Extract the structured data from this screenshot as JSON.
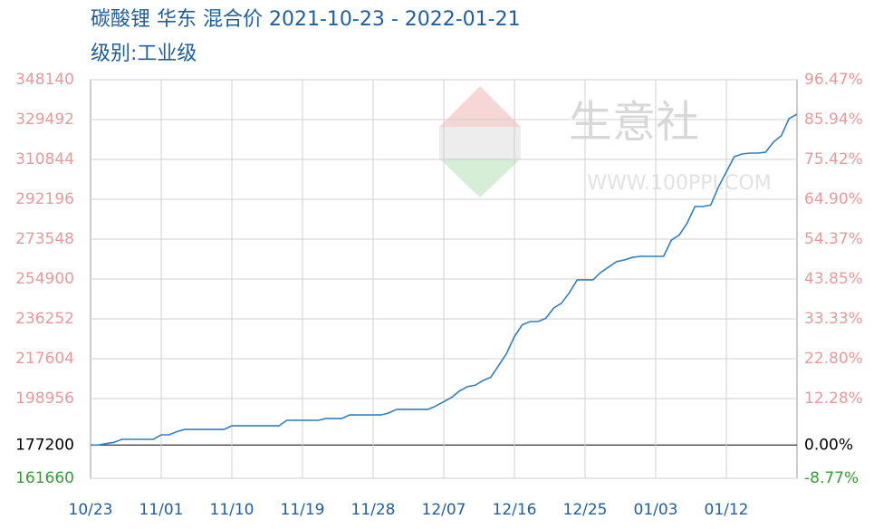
{
  "chart_data": {
    "type": "line",
    "title": "碳酸锂 华东 混合价 2021-10-23 - 2022-01-21",
    "subtitle": "级别:工业级",
    "watermark": "生意社",
    "watermark_url": "WWW.100PPI.COM",
    "categories": [
      "10/23",
      null,
      null,
      null,
      null,
      null,
      null,
      null,
      null,
      "11/01",
      null,
      null,
      null,
      null,
      null,
      null,
      null,
      null,
      "11/10",
      null,
      null,
      null,
      null,
      null,
      null,
      null,
      null,
      "11/19",
      null,
      null,
      null,
      null,
      null,
      null,
      null,
      null,
      "11/28",
      null,
      null,
      null,
      null,
      null,
      null,
      null,
      null,
      "12/07",
      null,
      null,
      null,
      null,
      null,
      null,
      null,
      null,
      "12/16",
      null,
      null,
      null,
      null,
      null,
      null,
      null,
      null,
      "12/25",
      null,
      null,
      null,
      null,
      null,
      null,
      null,
      null,
      "01/03",
      null,
      null,
      null,
      null,
      null,
      null,
      null,
      null,
      "01/12",
      null,
      null,
      null,
      null,
      null,
      null,
      null,
      null,
      null
    ],
    "series": [
      {
        "color": "#2f7fc1",
        "values": [
          177200,
          177200,
          177900,
          178500,
          179900,
          179900,
          179900,
          179900,
          179900,
          182000,
          182000,
          183500,
          184500,
          184500,
          184500,
          184500,
          184500,
          184500,
          186200,
          186200,
          186200,
          186200,
          186200,
          186200,
          186200,
          188800,
          188800,
          188800,
          188800,
          188800,
          189600,
          189600,
          189600,
          191300,
          191300,
          191300,
          191300,
          191300,
          192200,
          193900,
          193900,
          193900,
          193900,
          193900,
          195500,
          197500,
          199500,
          202500,
          204500,
          205200,
          207400,
          209000,
          214500,
          220000,
          228000,
          233500,
          235000,
          235000,
          236500,
          241300,
          243600,
          248500,
          254500,
          254500,
          254500,
          258000,
          260500,
          263000,
          263800,
          265000,
          265500,
          265500,
          265500,
          265500,
          273100,
          275500,
          281000,
          288800,
          288800,
          289500,
          298000,
          305000,
          312100,
          313400,
          313800,
          313800,
          314200,
          319000,
          322000,
          330000,
          332000
        ]
      }
    ],
    "ylim": [
      161660,
      348140
    ],
    "yticks": [
      161660,
      177200,
      198956,
      217604,
      236252,
      254900,
      273548,
      292196,
      310844,
      329492,
      348140
    ],
    "y2lim": [
      -8.77,
      96.47
    ],
    "y2ticks": [
      {
        "value": -8.77,
        "label": "-8.77%"
      },
      {
        "value": 0,
        "label": "0.00%"
      },
      {
        "value": 12.28,
        "label": "12.28%"
      },
      {
        "value": 22.8,
        "label": "22.80%"
      },
      {
        "value": 33.33,
        "label": "33.33%"
      },
      {
        "value": 43.85,
        "label": "43.85%"
      },
      {
        "value": 54.37,
        "label": "54.37%"
      },
      {
        "value": 64.9,
        "label": "64.90%"
      },
      {
        "value": 75.42,
        "label": "75.42%"
      },
      {
        "value": 85.94,
        "label": "85.94%"
      },
      {
        "value": 96.47,
        "label": "96.47%"
      }
    ],
    "grid": true,
    "tick_colors": {
      "up": "#e89a9a",
      "zero": "#000000",
      "down": "#3a9a3a"
    }
  }
}
